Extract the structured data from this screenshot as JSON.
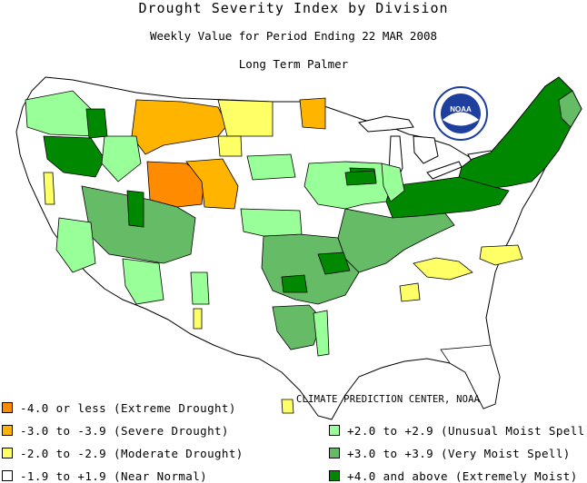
{
  "title": "Drought Severity Index by Division",
  "subtitle": "Weekly Value for Period Ending 22 MAR 2008",
  "index_name": "Long Term Palmer",
  "credit": "CLIMATE PREDICTION CENTER, NOAA",
  "logo_text": "NOAA",
  "colors": {
    "extreme_drought": "#ff8c00",
    "severe_drought": "#ffb400",
    "moderate_drought": "#ffff66",
    "near_normal": "#ffffff",
    "unusual_moist": "#99ff99",
    "very_moist": "#66bb66",
    "extremely_moist": "#008800",
    "noaa_blue": "#1f3f9f"
  },
  "legend_left": [
    {
      "label": "-4.0 or less (Extreme Drought)",
      "color": "#ff8c00"
    },
    {
      "label": "-3.0 to -3.9 (Severe Drought)",
      "color": "#ffb400"
    },
    {
      "label": "-2.0 to -2.9 (Moderate Drought)",
      "color": "#ffff66"
    },
    {
      "label": "-1.9 to +1.9 (Near Normal)",
      "color": "#ffffff"
    }
  ],
  "legend_right": [
    {
      "label": "+2.0 to +2.9 (Unusual Moist Spell)",
      "color": "#99ff99"
    },
    {
      "label": "+3.0 to +3.9 (Very Moist Spell)",
      "color": "#66bb66"
    },
    {
      "label": "+4.0 and above (Extremely Moist)",
      "color": "#008800"
    }
  ]
}
